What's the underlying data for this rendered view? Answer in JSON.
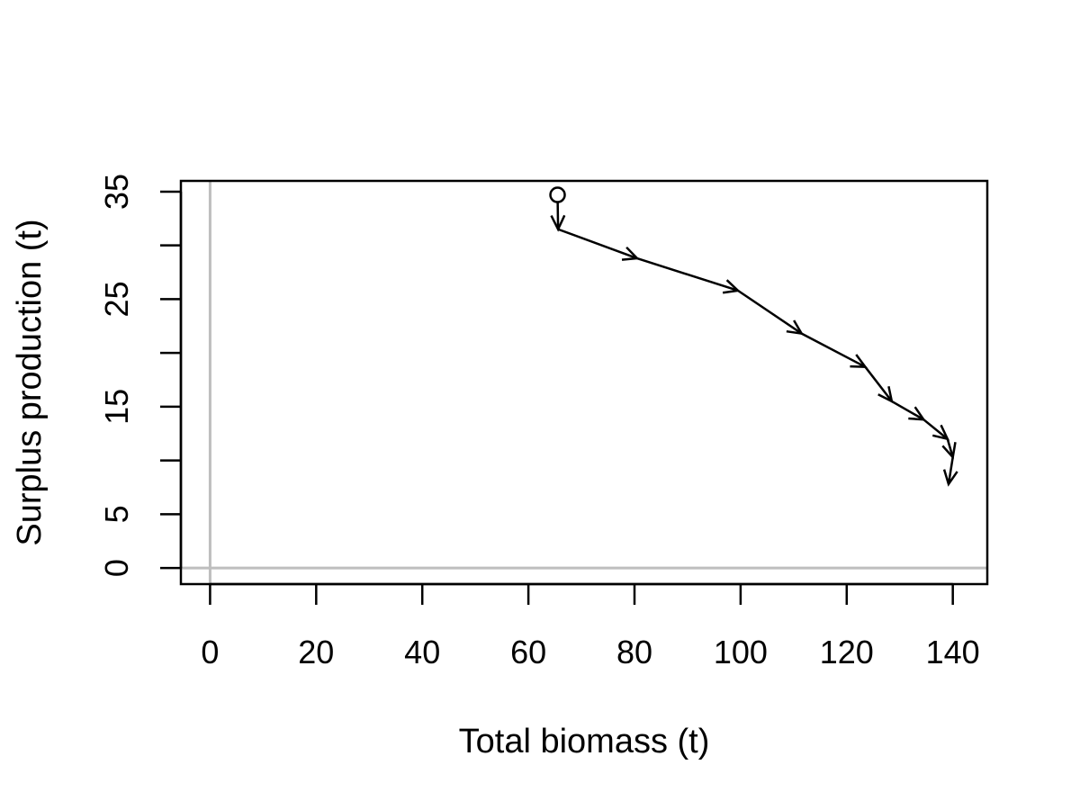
{
  "chart_data": {
    "type": "line",
    "title": "",
    "xlabel": "Total biomass (t)",
    "ylabel": "Surplus production (t)",
    "xlim": [
      -5.5,
      146.5
    ],
    "ylim": [
      -1.5,
      36
    ],
    "x_ticks": [
      0,
      20,
      40,
      60,
      80,
      100,
      120,
      140
    ],
    "x_tick_labels": [
      "0",
      "20",
      "40",
      "60",
      "80",
      "100",
      "120",
      "140"
    ],
    "y_ticks": [
      0,
      5,
      10,
      15,
      20,
      25,
      30,
      35
    ],
    "y_tick_labels": [
      "0",
      "5",
      "",
      "15",
      "",
      "25",
      "",
      "35"
    ],
    "reference_lines": {
      "x": 0,
      "y": 0,
      "color": "#bebebe"
    },
    "line_color": "#000000",
    "start_marker": "open-circle",
    "segment_style": "arrow",
    "series": [
      {
        "x": [
          65.5,
          65.6,
          80.5,
          99.5,
          111.5,
          123.5,
          128.5,
          134.5,
          139.0,
          140.0,
          139.2
        ],
        "y": [
          34.7,
          31.5,
          28.8,
          25.8,
          21.8,
          18.7,
          15.5,
          13.8,
          12.0,
          10.3,
          7.8
        ]
      }
    ]
  }
}
